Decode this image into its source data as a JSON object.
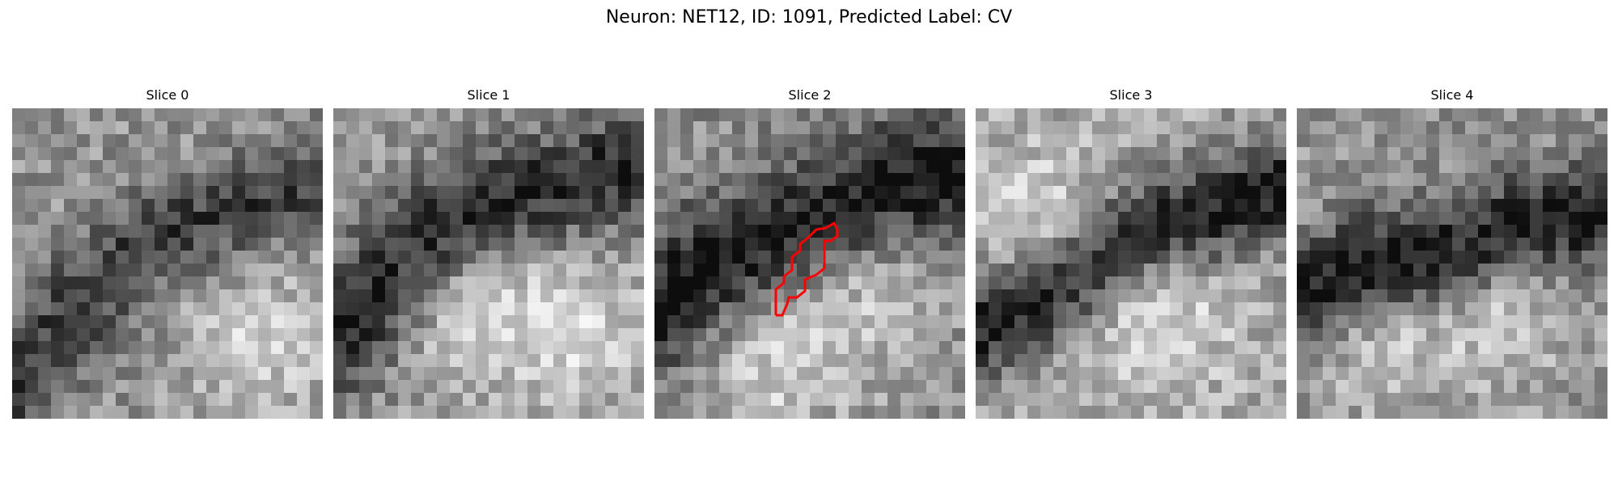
{
  "figure": {
    "title": "Neuron: NET12, ID: 1091, Predicted Label: CV"
  },
  "panels": [
    {
      "title": "Slice 0"
    },
    {
      "title": "Slice 1"
    },
    {
      "title": "Slice 2"
    },
    {
      "title": "Slice 3"
    },
    {
      "title": "Slice 4"
    }
  ],
  "colors": {
    "background": "#ffffff",
    "contour": "#ff0000"
  }
}
